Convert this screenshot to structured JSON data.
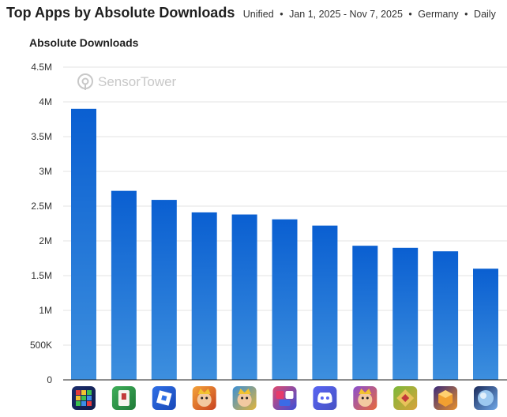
{
  "header": {
    "title": "Top Apps by Absolute Downloads",
    "subtitle": {
      "type": "Unified",
      "date_range": "Jan 1, 2025 - Nov 7, 2025",
      "country": "Germany",
      "granularity": "Daily",
      "separator": "•"
    }
  },
  "watermark": {
    "brand_first": "Sensor",
    "brand_second": "Tower",
    "icon": "sensortower-logo-icon"
  },
  "colors": {
    "bar_top": "#0a5fd1",
    "bar_bottom": "#3d8fde",
    "grid": "#e3e3e3",
    "axis": "#222222"
  },
  "chart_data": {
    "type": "bar",
    "title": "Top Apps by Absolute Downloads",
    "ylabel": "Absolute Downloads",
    "xlabel": "",
    "ylim": [
      0,
      4500000
    ],
    "ytick_values": [
      0,
      500000,
      1000000,
      1500000,
      2000000,
      2500000,
      3000000,
      3500000,
      4000000,
      4500000
    ],
    "ytick_labels": [
      "0",
      "500K",
      "1M",
      "1.5M",
      "2M",
      "2.5M",
      "3M",
      "3.5M",
      "4M",
      "4.5M"
    ],
    "grid": true,
    "categories": [
      "block-puzzle-app-icon",
      "mahjong-app-icon",
      "roblox-app-icon",
      "royal-match-app-icon",
      "clash-royale-app-icon",
      "merge-numbers-app-icon",
      "discord-app-icon",
      "subway-surfers-app-icon",
      "puzzle-game-app-icon",
      "block-cube-app-icon",
      "planet-app-icon"
    ],
    "values": [
      3900000,
      2720000,
      2590000,
      2410000,
      2380000,
      2310000,
      2220000,
      1930000,
      1900000,
      1850000,
      1600000
    ]
  }
}
